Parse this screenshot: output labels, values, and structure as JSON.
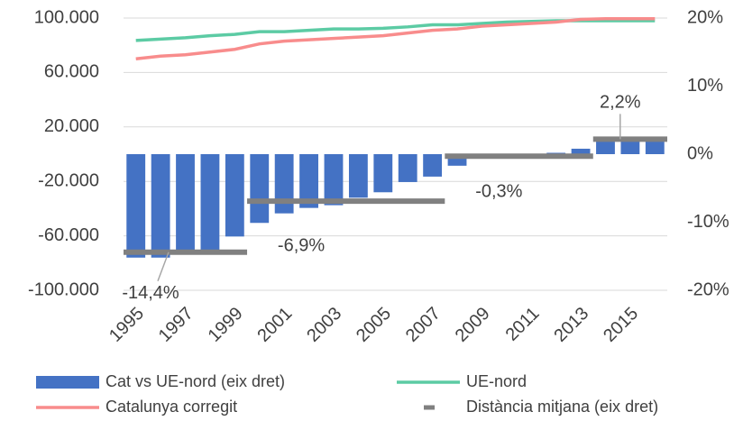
{
  "chart_data": {
    "type": "bar-line",
    "categories": [
      "1995",
      null,
      "1997",
      null,
      "1999",
      null,
      "2001",
      null,
      "2003",
      null,
      "2005",
      null,
      "2007",
      null,
      "2009",
      null,
      "2011",
      null,
      "2013",
      null,
      "2015",
      null
    ],
    "series": [
      {
        "name": "Cat vs UE-nord (eix dret)",
        "type": "bar",
        "axis": "y2",
        "color": "#4472c4",
        "values": [
          -15.2,
          -15.2,
          -14.5,
          -14.2,
          -12.1,
          -10.1,
          -8.7,
          -7.9,
          -7.5,
          -6.4,
          -5.6,
          -4.1,
          -3.3,
          -1.7,
          -0.5,
          -0.3,
          0,
          0.2,
          0.8,
          2.4,
          2.4,
          2.4
        ]
      },
      {
        "name": "UE-nord",
        "type": "line",
        "color": "#5ccba4",
        "values": [
          83500,
          84500,
          85500,
          87000,
          88000,
          90000,
          90000,
          91000,
          92000,
          92000,
          92500,
          93500,
          95000,
          95000,
          96000,
          97000,
          97500,
          98000,
          98000,
          98000,
          98000,
          98000
        ]
      },
      {
        "name": "Catalunya corregit",
        "type": "line",
        "color": "#f88c8c",
        "values": [
          70000,
          72000,
          73000,
          75000,
          77000,
          81000,
          83000,
          84000,
          85000,
          86000,
          87000,
          89000,
          91000,
          92000,
          94000,
          95000,
          96000,
          97000,
          99000,
          99500,
          99500,
          99500
        ]
      },
      {
        "name": "Distància mitjana (eix dret)",
        "type": "segments",
        "axis": "y2",
        "color": "#808080",
        "values": [
          -14.4,
          -14.4,
          -14.4,
          -14.4,
          -14.4,
          -6.9,
          -6.9,
          -6.9,
          -6.9,
          -6.9,
          -6.9,
          -6.9,
          -6.9,
          -0.3,
          -0.3,
          -0.3,
          -0.3,
          -0.3,
          -0.3,
          2.2,
          2.2,
          2.2
        ],
        "data_labels": [
          "-14,4%",
          "-6,9%",
          "-0,3%",
          "2,2%"
        ]
      }
    ],
    "ylim": [
      -100000,
      100000
    ],
    "yticks": [
      {
        "value": 100000,
        "label": "100.000"
      },
      {
        "value": 60000,
        "label": "60.000"
      },
      {
        "value": 20000,
        "label": "20.000"
      },
      {
        "value": -20000,
        "label": "-20.000"
      },
      {
        "value": -60000,
        "label": "-60.000"
      },
      {
        "value": -100000,
        "label": "-100.000"
      }
    ],
    "y2lim": [
      -20,
      20
    ],
    "y2ticks": [
      {
        "value": 20,
        "label": "20%"
      },
      {
        "value": 10,
        "label": "10%"
      },
      {
        "value": 0,
        "label": "0%"
      },
      {
        "value": -10,
        "label": "-10%"
      },
      {
        "value": -20,
        "label": "-20%"
      }
    ],
    "grid": true
  }
}
